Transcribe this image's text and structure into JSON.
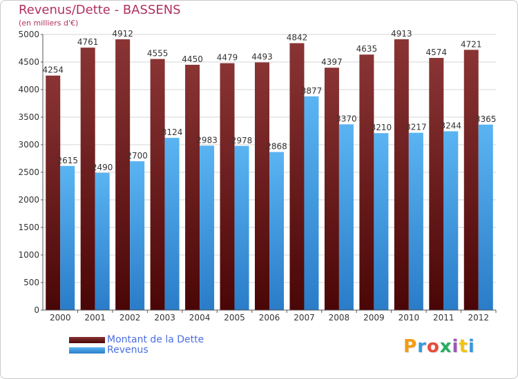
{
  "title": "Revenus/Dette - BASSENS",
  "subtitle": "(en milliers d'€)",
  "logo_text": "Proxiti",
  "chart_data": {
    "type": "bar",
    "title": "Revenus/Dette - BASSENS",
    "subtitle": "(en milliers d'€)",
    "categories": [
      "2000",
      "2001",
      "2002",
      "2003",
      "2004",
      "2005",
      "2006",
      "2007",
      "2008",
      "2009",
      "2010",
      "2011",
      "2012"
    ],
    "series": [
      {
        "name": "Montant de la Dette",
        "values": [
          4254,
          4761,
          4912,
          4555,
          4450,
          4479,
          4493,
          4842,
          4397,
          4635,
          4913,
          4574,
          4721
        ],
        "color": "#7a2020"
      },
      {
        "name": "Revenus",
        "values": [
          2615,
          2490,
          2700,
          3124,
          2983,
          2978,
          2868,
          3877,
          3370,
          3210,
          3217,
          3244,
          3365
        ],
        "color": "#4aa3e8"
      }
    ],
    "yticks": [
      0,
      500,
      1000,
      1500,
      2000,
      2500,
      3000,
      3500,
      4000,
      4500,
      5000
    ],
    "ylim": [
      0,
      5000
    ],
    "grid": true,
    "legend_position": "bottom-left"
  }
}
